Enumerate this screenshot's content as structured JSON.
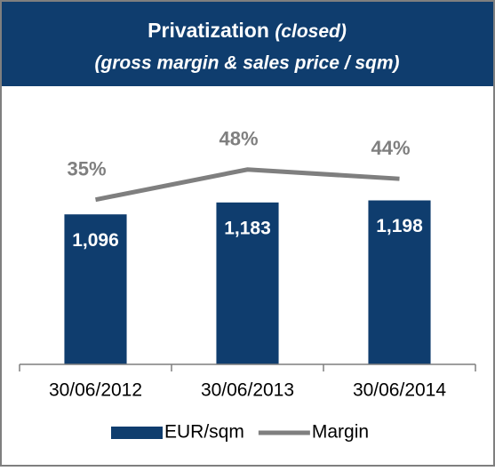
{
  "chart_data": {
    "type": "bar_line",
    "title": "Privatization",
    "title_note": "(closed)",
    "subtitle": "(gross margin & sales price / sqm)",
    "categories": [
      "30/06/2012",
      "30/06/2013",
      "30/06/2014"
    ],
    "series": [
      {
        "name": "EUR/sqm",
        "type": "bar",
        "color": "#0f3d6e",
        "values": [
          1096,
          1183,
          1198
        ],
        "value_labels": [
          "1,096",
          "1,183",
          "1,198"
        ]
      },
      {
        "name": "Margin",
        "type": "line",
        "axis": "y2",
        "color": "#7f7f7f",
        "values": [
          35,
          48,
          44
        ],
        "value_labels": [
          "35%",
          "48%",
          "44%"
        ]
      }
    ],
    "ylim": [
      0,
      2000
    ],
    "y2lim": [
      -36,
      82
    ],
    "legend": "bottom"
  }
}
